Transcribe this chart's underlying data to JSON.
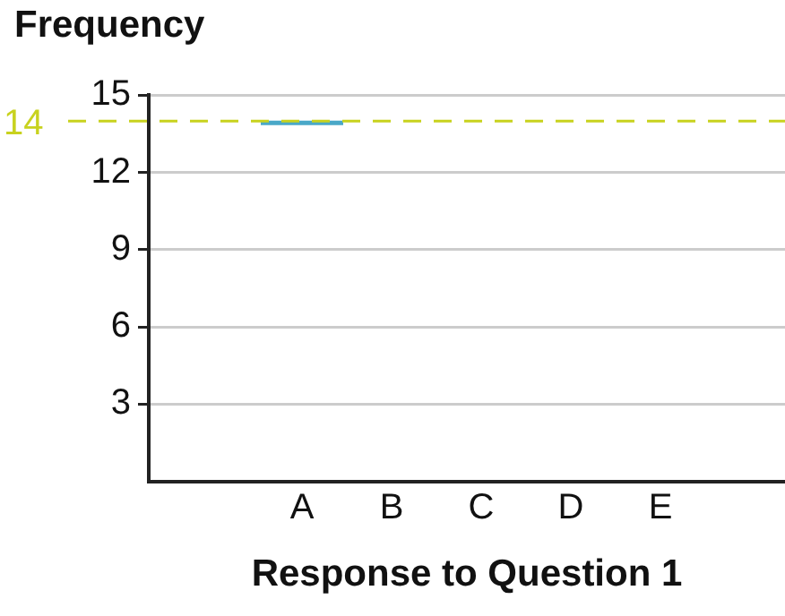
{
  "chart_data": {
    "type": "bar",
    "title": "Frequency",
    "xlabel": "Response to Question 1",
    "categories": [
      "A",
      "B",
      "C",
      "D",
      "E"
    ],
    "series": [
      {
        "color": "#4aa8c8",
        "values": [
          14,
          null,
          null,
          null,
          null
        ]
      }
    ],
    "ylim": [
      0,
      15
    ],
    "yticks": [
      3,
      6,
      9,
      12,
      15
    ],
    "grid": "y",
    "legend": false,
    "ref_lines": [
      {
        "axis": "y",
        "value": 14,
        "label": "14",
        "color": "#c8d21e",
        "line_style": "dashed"
      }
    ]
  }
}
